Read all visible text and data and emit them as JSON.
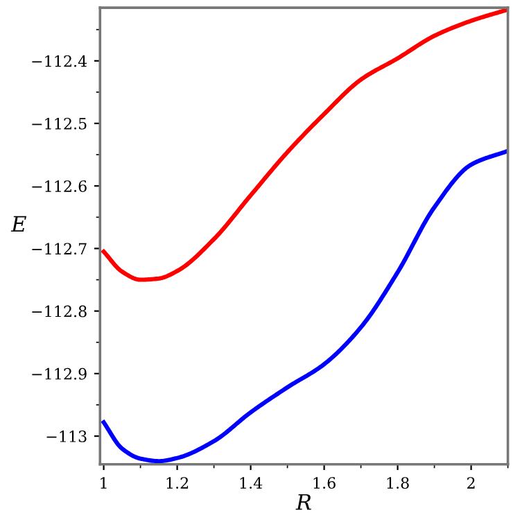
{
  "chart_data": {
    "type": "line",
    "xlabel": "R",
    "ylabel": "E",
    "xlim": [
      0.99,
      2.1
    ],
    "ylim": [
      -113.045,
      -112.315
    ],
    "xticks": [
      1,
      1.2,
      1.4,
      1.6,
      1.8,
      2
    ],
    "yticks": [
      {
        "value": -113,
        "label": "−113"
      },
      {
        "value": -112.9,
        "label": "−112.9"
      },
      {
        "value": -112.8,
        "label": "−112.8"
      },
      {
        "value": -112.7,
        "label": "−112.7"
      },
      {
        "value": -112.6,
        "label": "−112.6"
      },
      {
        "value": -112.5,
        "label": "−112.5"
      },
      {
        "value": -112.4,
        "label": "−112.4"
      }
    ],
    "grid": false,
    "marker": "none",
    "line_style": "solid",
    "series": [
      {
        "color": "#ff0000",
        "x": [
          1,
          1.05,
          1.1,
          1.15,
          1.2,
          1.3,
          1.4,
          1.5,
          1.6,
          1.7,
          1.8,
          1.9,
          2.0,
          2.1
        ],
        "values": [
          -112.705,
          -112.737,
          -112.75,
          -112.748,
          -112.736,
          -112.685,
          -112.615,
          -112.546,
          -112.485,
          -112.43,
          -112.396,
          -112.36,
          -112.336,
          -112.318
        ]
      },
      {
        "color": "#0000ff",
        "x": [
          1,
          1.05,
          1.1,
          1.15,
          1.2,
          1.3,
          1.4,
          1.5,
          1.6,
          1.7,
          1.8,
          1.9,
          2.0,
          2.1
        ],
        "values": [
          -112.978,
          -113.02,
          -113.036,
          -113.04,
          -113.035,
          -113.008,
          -112.962,
          -112.922,
          -112.885,
          -112.826,
          -112.738,
          -112.634,
          -112.566,
          -112.544
        ]
      }
    ]
  }
}
